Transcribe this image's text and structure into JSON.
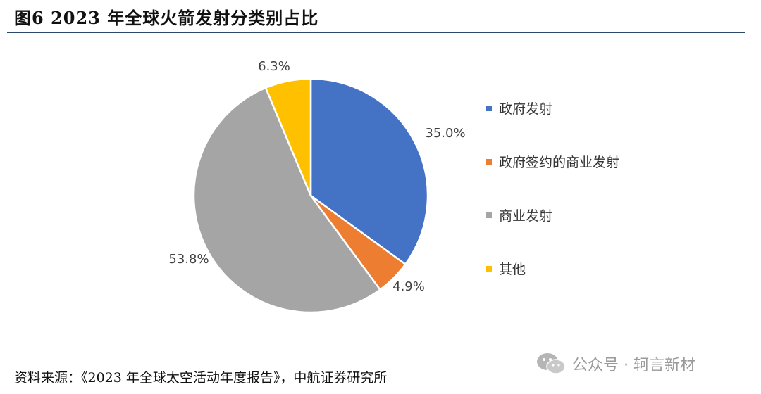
{
  "figure": {
    "title": "图6  2023 年全球火箭发射分类别占比",
    "source": "资料来源：《2023 年全球太空活动年度报告》，中航证券研究所"
  },
  "watermark": {
    "text": "公众号 · 轲言新材"
  },
  "chart_data": {
    "type": "pie",
    "title": "",
    "start_angle_deg": 0,
    "direction": "clockwise",
    "legend_position": "right",
    "slices": [
      {
        "label": "政府发射",
        "value": 35.0,
        "display": "35.0%",
        "color": "#4472C4"
      },
      {
        "label": "政府签约的商业发射",
        "value": 4.9,
        "display": "4.9%",
        "color": "#ED7D31"
      },
      {
        "label": "商业发射",
        "value": 53.8,
        "display": "53.8%",
        "color": "#A5A5A5"
      },
      {
        "label": "其他",
        "value": 6.3,
        "display": "6.3%",
        "color": "#FFC000"
      }
    ]
  }
}
